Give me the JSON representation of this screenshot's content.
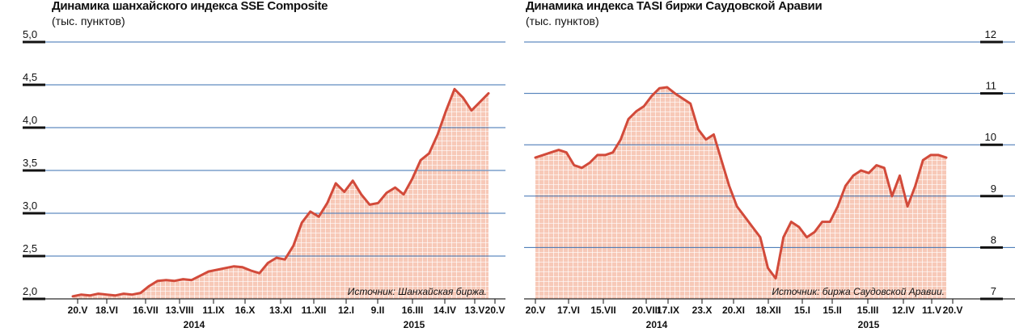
{
  "chart_data": [
    {
      "type": "area",
      "title": "Динамика шанхайского индекса SSE Composite",
      "subtitle": "(тыс. пунктов)",
      "source": "Источник: Шанхайская биржа.",
      "ylim": [
        2.0,
        5.0
      ],
      "y_ticks": [
        "2,0",
        "2,5",
        "3,0",
        "3,5",
        "4,0",
        "4,5",
        "5,0"
      ],
      "x_ticks": [
        "20.V",
        "18.VI",
        "16.VII",
        "13.VIII",
        "11.IX",
        "16.X",
        "13.XI",
        "11.XII",
        "12.I",
        "9.II",
        "16.III",
        "14.IV",
        "13.V",
        "20.V"
      ],
      "years": [
        "2014",
        "2015"
      ],
      "grid": true,
      "x": [
        "20.V",
        "27.V",
        "3.VI",
        "10.VI",
        "18.VI",
        "25.VI",
        "2.VII",
        "9.VII",
        "16.VII",
        "23.VII",
        "30.VII",
        "6.VIII",
        "13.VIII",
        "20.VIII",
        "27.VIII",
        "3.IX",
        "11.IX",
        "18.IX",
        "25.IX",
        "9.X",
        "16.X",
        "23.X",
        "30.X",
        "6.XI",
        "13.XI",
        "20.XI",
        "27.XI",
        "4.XII",
        "11.XII",
        "18.XII",
        "25.XII",
        "5.I",
        "12.I",
        "19.I",
        "26.I",
        "2.II",
        "9.II",
        "16.II",
        "2.III",
        "9.III",
        "16.III",
        "23.III",
        "30.III",
        "7.IV",
        "14.IV",
        "21.IV",
        "28.IV",
        "6.V",
        "13.V",
        "20.V"
      ],
      "values": [
        2.03,
        2.05,
        2.04,
        2.06,
        2.05,
        2.04,
        2.06,
        2.05,
        2.07,
        2.15,
        2.21,
        2.22,
        2.21,
        2.23,
        2.22,
        2.27,
        2.32,
        2.34,
        2.36,
        2.38,
        2.37,
        2.33,
        2.3,
        2.42,
        2.48,
        2.46,
        2.62,
        2.89,
        3.02,
        2.96,
        3.12,
        3.35,
        3.25,
        3.38,
        3.22,
        3.1,
        3.12,
        3.24,
        3.3,
        3.22,
        3.4,
        3.62,
        3.7,
        3.92,
        4.2,
        4.45,
        4.35,
        4.2,
        4.3,
        4.4
      ]
    },
    {
      "type": "area",
      "title": "Динамика индекса TASI биржи Саудовской Аравии",
      "subtitle": "(тыс. пунктов)",
      "source": "Источник: биржа Саудовской Аравии.",
      "ylim": [
        7,
        12
      ],
      "y_ticks": [
        "7",
        "8",
        "9",
        "10",
        "11",
        "12"
      ],
      "x_ticks": [
        "20.V",
        "17.VI",
        "15.VII",
        "20.VIII",
        "17.IX",
        "23.X",
        "20.XI",
        "18.XII",
        "15.I",
        "15.II",
        "15.III",
        "12.IV",
        "11.V",
        "20.V"
      ],
      "years": [
        "2014",
        "2015"
      ],
      "grid": true,
      "x": [
        "20.V",
        "27.V",
        "3.VI",
        "10.VI",
        "17.VI",
        "24.VI",
        "1.VII",
        "8.VII",
        "15.VII",
        "22.VII",
        "29.VII",
        "6.VIII",
        "13.VIII",
        "20.VIII",
        "27.VIII",
        "3.IX",
        "10.IX",
        "17.IX",
        "24.IX",
        "1.X",
        "8.X",
        "16.X",
        "23.X",
        "30.X",
        "6.XI",
        "13.XI",
        "20.XI",
        "27.XI",
        "4.XII",
        "11.XII",
        "16.XII",
        "18.XII",
        "21.XII",
        "25.XII",
        "1.I",
        "8.I",
        "15.I",
        "22.I",
        "29.I",
        "5.II",
        "15.II",
        "22.II",
        "1.III",
        "8.III",
        "15.III",
        "22.III",
        "29.III",
        "5.IV",
        "12.IV",
        "19.IV",
        "26.IV",
        "3.V",
        "11.V",
        "20.V"
      ],
      "values": [
        9.75,
        9.8,
        9.85,
        9.9,
        9.85,
        9.6,
        9.55,
        9.65,
        9.8,
        9.8,
        9.85,
        10.1,
        10.5,
        10.65,
        10.75,
        10.95,
        11.1,
        11.12,
        11.0,
        10.9,
        10.8,
        10.3,
        10.1,
        10.2,
        9.7,
        9.2,
        8.8,
        8.6,
        8.4,
        8.2,
        7.6,
        7.4,
        8.2,
        8.5,
        8.4,
        8.2,
        8.3,
        8.5,
        8.5,
        8.8,
        9.2,
        9.4,
        9.5,
        9.45,
        9.6,
        9.55,
        9.0,
        9.4,
        8.8,
        9.2,
        9.7,
        9.8,
        9.8,
        9.75
      ]
    }
  ]
}
